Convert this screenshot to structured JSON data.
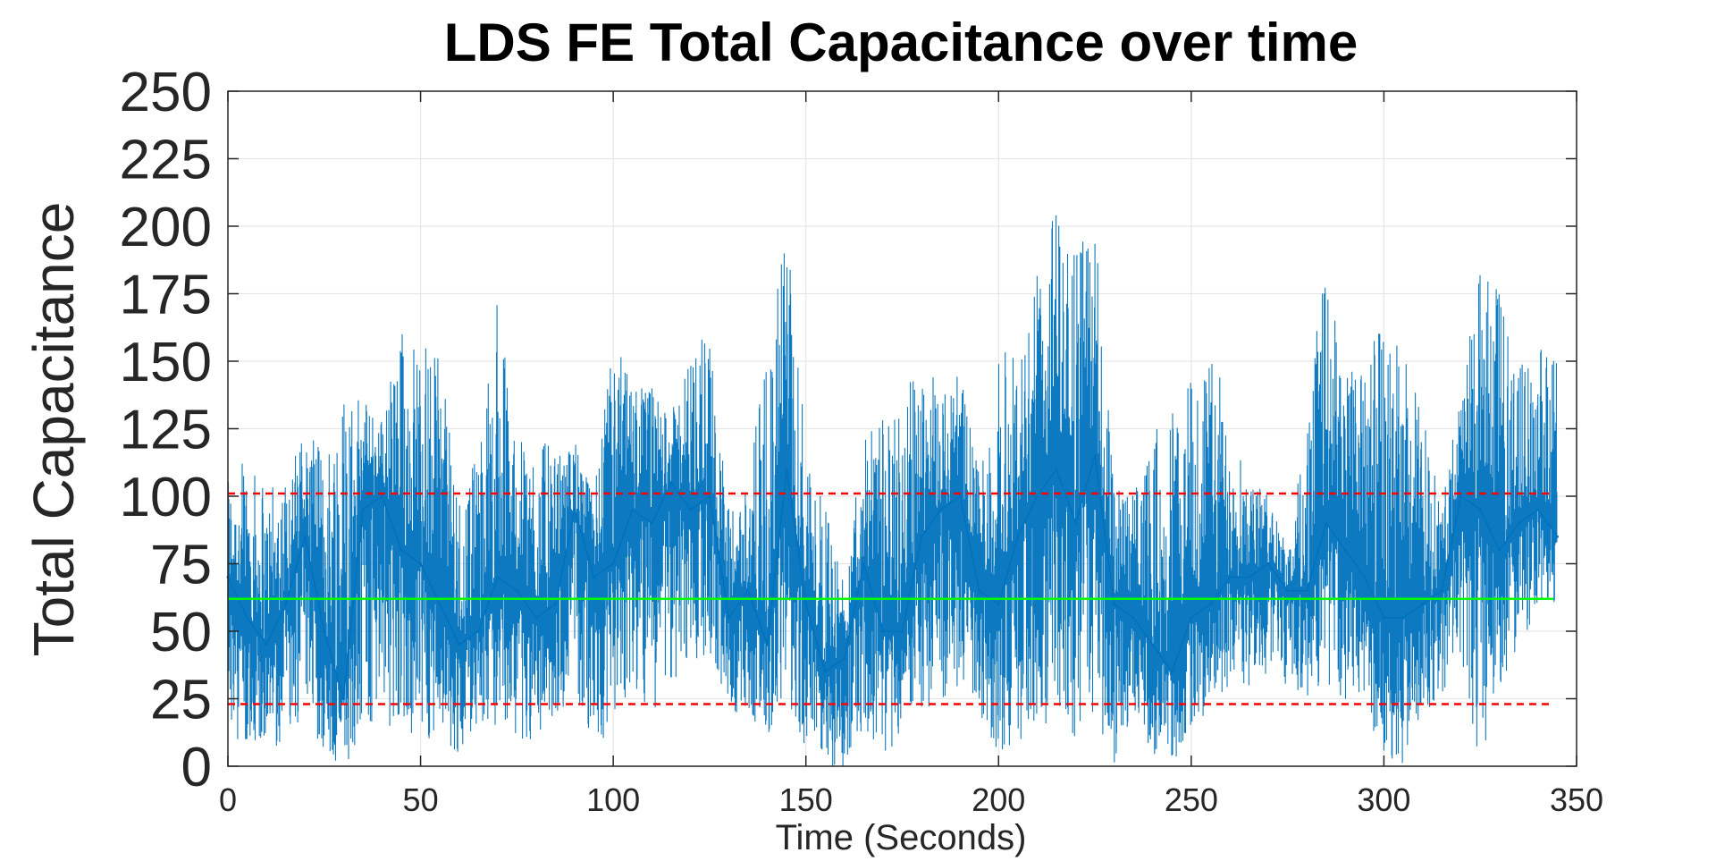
{
  "chart_data": {
    "type": "line",
    "title": "LDS FE Total Capacitance over time",
    "xlabel": "Time (Seconds)",
    "ylabel": "Total Capacitance",
    "xlim": [
      0,
      350
    ],
    "ylim": [
      0,
      250
    ],
    "xticks": [
      "0",
      "50",
      "100",
      "150",
      "200",
      "250",
      "300",
      "350"
    ],
    "yticks": [
      "0",
      "25",
      "50",
      "75",
      "100",
      "125",
      "150",
      "175",
      "200",
      "225",
      "250"
    ],
    "grid": true,
    "legend": "none",
    "colors": {
      "signal": "#0072BD",
      "mean": "#00FF00",
      "limits": "#FF0000",
      "axes": "#262626",
      "grid": "#E6E6E6"
    },
    "series": [
      {
        "line": "solid",
        "x": [
          0,
          5,
          10,
          15,
          20,
          25,
          30,
          35,
          40,
          45,
          50,
          55,
          60,
          65,
          70,
          75,
          80,
          85,
          90,
          95,
          100,
          105,
          110,
          115,
          120,
          125,
          130,
          135,
          140,
          145,
          150,
          155,
          160,
          165,
          170,
          175,
          180,
          185,
          190,
          195,
          200,
          205,
          210,
          215,
          220,
          225,
          230,
          235,
          240,
          245,
          250,
          255,
          260,
          265,
          270,
          275,
          280,
          285,
          290,
          295,
          300,
          305,
          310,
          315,
          320,
          325,
          330,
          335,
          340,
          345
        ],
        "y": [
          70,
          55,
          45,
          60,
          85,
          50,
          25,
          95,
          100,
          80,
          75,
          60,
          45,
          50,
          70,
          65,
          55,
          60,
          95,
          70,
          75,
          95,
          90,
          105,
          95,
          100,
          55,
          65,
          45,
          110,
          60,
          35,
          40,
          75,
          50,
          50,
          85,
          95,
          100,
          65,
          60,
          85,
          100,
          110,
          90,
          115,
          60,
          55,
          45,
          35,
          55,
          60,
          70,
          70,
          75,
          65,
          65,
          90,
          80,
          70,
          55,
          55,
          60,
          65,
          100,
          95,
          80,
          90,
          95,
          85
        ],
        "low": [
          10,
          10,
          5,
          10,
          20,
          5,
          0,
          10,
          15,
          15,
          10,
          10,
          5,
          15,
          10,
          10,
          10,
          20,
          25,
          10,
          10,
          30,
          20,
          30,
          40,
          40,
          20,
          20,
          10,
          20,
          5,
          0,
          0,
          15,
          5,
          10,
          20,
          25,
          30,
          20,
          5,
          10,
          5,
          25,
          10,
          20,
          0,
          20,
          5,
          0,
          15,
          20,
          30,
          30,
          35,
          30,
          25,
          30,
          25,
          20,
          5,
          0,
          20,
          25,
          40,
          0,
          30,
          45,
          55,
          60
        ],
        "high": [
          105,
          115,
          100,
          110,
          125,
          115,
          155,
          135,
          130,
          165,
          160,
          150,
          100,
          115,
          175,
          120,
          125,
          115,
          120,
          100,
          160,
          145,
          140,
          130,
          155,
          160,
          95,
          110,
          150,
          200,
          125,
          95,
          70,
          120,
          130,
          140,
          150,
          140,
          145,
          110,
          155,
          150,
          190,
          205,
          195,
          200,
          105,
          100,
          125,
          130,
          150,
          155,
          135,
          110,
          100,
          80,
          130,
          190,
          150,
          150,
          165,
          155,
          130,
          95,
          140,
          185,
          175,
          150,
          155,
          150
        ]
      },
      {
        "line": "solid",
        "x": [
          0,
          344
        ],
        "y": [
          62,
          62
        ]
      },
      {
        "line": "dashed",
        "x": [
          0,
          344
        ],
        "y": [
          101,
          101
        ]
      },
      {
        "line": "dashed",
        "x": [
          0,
          344
        ],
        "y": [
          23,
          23
        ]
      }
    ]
  }
}
